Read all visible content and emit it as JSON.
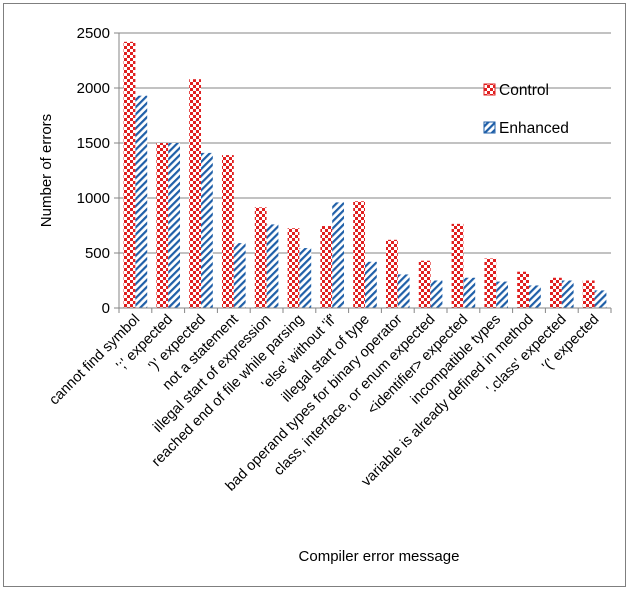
{
  "chart_data": {
    "type": "bar",
    "title": "",
    "xlabel": "Compiler error message",
    "ylabel": "Number of errors",
    "ylim": [
      0,
      2500
    ],
    "yticks": [
      0,
      500,
      1000,
      1500,
      2000,
      2500
    ],
    "grid": true,
    "legend_position": "top-right",
    "categories": [
      "cannot find symbol",
      "';' expected",
      "')' expected",
      "not a statement",
      "illegal start of expression",
      "reached end of file while parsing",
      "'else' without 'if'",
      "illegal start of type",
      "bad operand types for binary operator",
      "class, interface, or enum expected",
      "<identifier> expected",
      "incompatible types",
      "variable is already defined in method",
      "'.class' expected",
      "'(' expected"
    ],
    "series": [
      {
        "name": "Control",
        "color": "#e02020",
        "pattern": "checker",
        "values": [
          2420,
          1500,
          2080,
          1390,
          915,
          725,
          745,
          970,
          620,
          430,
          765,
          450,
          330,
          275,
          250
        ]
      },
      {
        "name": "Enhanced",
        "color": "#1f5fa8",
        "pattern": "diagonal",
        "values": [
          1930,
          1500,
          1410,
          590,
          760,
          545,
          960,
          420,
          305,
          250,
          275,
          240,
          205,
          250,
          160
        ]
      }
    ]
  }
}
